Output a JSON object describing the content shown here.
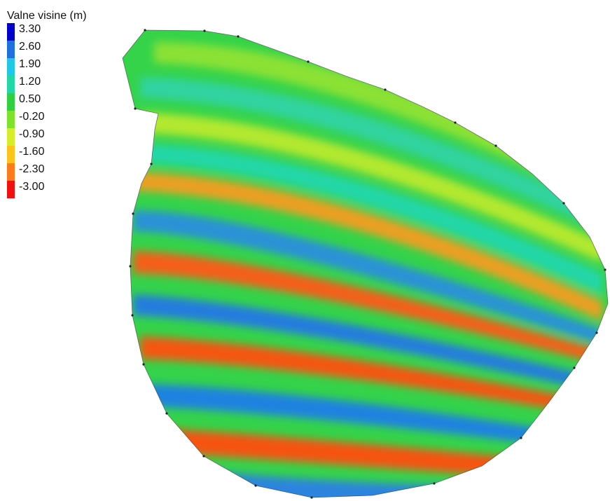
{
  "legend": {
    "title": "Valne visine (m)",
    "levels": [
      {
        "label": "3.30",
        "color": "#0000cc"
      },
      {
        "label": "2.60",
        "color": "#1f6fe0"
      },
      {
        "label": "1.90",
        "color": "#1fc8e8"
      },
      {
        "label": "1.20",
        "color": "#22d7a6"
      },
      {
        "label": "0.50",
        "color": "#2fcf3f"
      },
      {
        "label": "-0.20",
        "color": "#7fe22a"
      },
      {
        "label": "-0.90",
        "color": "#d6ee2a"
      },
      {
        "label": "-1.60",
        "color": "#ffc21a"
      },
      {
        "label": "-2.30",
        "color": "#ff7a18"
      },
      {
        "label": "-3.00",
        "color": "#f20f0f"
      }
    ]
  }
}
